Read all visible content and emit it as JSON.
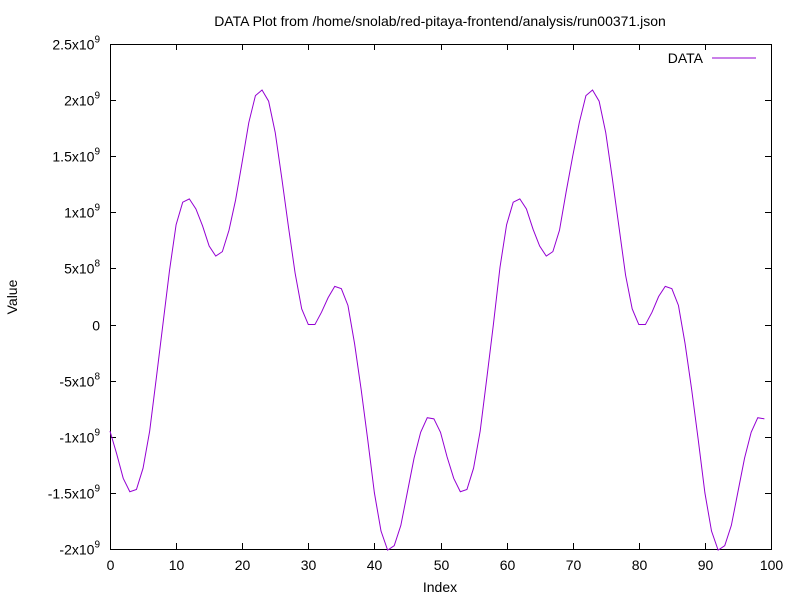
{
  "chart_data": {
    "type": "line",
    "title": "DATA Plot from /home/snolab/red-pitaya-frontend/analysis/run00371.json",
    "xlabel": "Index",
    "ylabel": "Value",
    "xlim": [
      0,
      100
    ],
    "ylim": [
      -2000000000,
      2500000000
    ],
    "x_ticks": [
      0,
      10,
      20,
      30,
      40,
      50,
      60,
      70,
      80,
      90,
      100
    ],
    "x_tick_labels": [
      "0",
      "10",
      "20",
      "30",
      "40",
      "50",
      "60",
      "70",
      "80",
      "90",
      "100"
    ],
    "y_ticks": [
      {
        "value": 2500000000,
        "mantissa": "2.5",
        "exp": "9"
      },
      {
        "value": 2000000000,
        "mantissa": "2",
        "exp": "9"
      },
      {
        "value": 1500000000,
        "mantissa": "1.5",
        "exp": "9"
      },
      {
        "value": 1000000000,
        "mantissa": "1",
        "exp": "9"
      },
      {
        "value": 500000000,
        "mantissa": "5",
        "exp": "8"
      },
      {
        "value": 0,
        "mantissa": "0",
        "exp": ""
      },
      {
        "value": -500000000,
        "mantissa": "-5",
        "exp": "8"
      },
      {
        "value": -1000000000,
        "mantissa": "-1",
        "exp": "9"
      },
      {
        "value": -1500000000,
        "mantissa": "-1.5",
        "exp": "9"
      },
      {
        "value": -2000000000,
        "mantissa": "-2",
        "exp": "9"
      }
    ],
    "x10_label": "x10",
    "grid": false,
    "legend_position": "top-right",
    "series": [
      {
        "name": "DATA",
        "color": "#9400d3",
        "x": [
          0,
          1,
          2,
          3,
          4,
          5,
          6,
          7,
          8,
          9,
          10,
          11,
          12,
          13,
          14,
          15,
          16,
          17,
          18,
          19,
          20,
          21,
          22,
          23,
          24,
          25,
          26,
          27,
          28,
          29,
          30,
          31,
          32,
          33,
          34,
          35,
          36,
          37,
          38,
          39,
          40,
          41,
          42,
          43,
          44,
          45,
          46,
          47,
          48,
          49,
          50,
          51,
          52,
          53,
          54,
          55,
          56,
          57,
          58,
          59,
          60,
          61,
          62,
          63,
          64,
          65,
          66,
          67,
          68,
          69,
          70,
          71,
          72,
          73,
          74,
          75,
          76,
          77,
          78,
          79,
          80,
          81,
          82,
          83,
          84,
          85,
          86,
          87,
          88,
          89,
          90,
          91,
          92,
          93,
          94,
          95,
          96,
          97,
          98,
          99
        ],
        "values": [
          -950000000.0,
          -1150000000.0,
          -1370000000.0,
          -1490000000.0,
          -1470000000.0,
          -1280000000.0,
          -950000000.0,
          -480000000.0,
          0.0,
          480000000.0,
          890000000.0,
          1090000000.0,
          1120000000.0,
          1030000000.0,
          880000000.0,
          700000000.0,
          610000000.0,
          650000000.0,
          840000000.0,
          1110000000.0,
          1450000000.0,
          1800000000.0,
          2040000000.0,
          2090000000.0,
          1990000000.0,
          1710000000.0,
          1300000000.0,
          870000000.0,
          460000000.0,
          140000000.0,
          0.0,
          0.0,
          110000000.0,
          240000000.0,
          340000000.0,
          320000000.0,
          170000000.0,
          -170000000.0,
          -580000000.0,
          -1030000000.0,
          -1500000000.0,
          -1840000000.0,
          -2010000000.0,
          -1970000000.0,
          -1790000000.0,
          -1490000000.0,
          -1190000000.0,
          -960000000.0,
          -830000000.0,
          -840000000.0,
          -960000000.0,
          -1180000000.0,
          -1370000000.0,
          -1490000000.0,
          -1470000000.0,
          -1280000000.0,
          -950000000.0,
          -480000000.0,
          0.0,
          510000000.0,
          890000000.0,
          1090000000.0,
          1120000000.0,
          1030000000.0,
          850000000.0,
          700000000.0,
          610000000.0,
          650000000.0,
          840000000.0,
          1180000000.0,
          1500000000.0,
          1800000000.0,
          2040000000.0,
          2090000000.0,
          1990000000.0,
          1710000000.0,
          1300000000.0,
          870000000.0,
          440000000.0,
          140000000.0,
          0.0,
          0.0,
          110000000.0,
          250000000.0,
          340000000.0,
          320000000.0,
          170000000.0,
          -170000000.0,
          -580000000.0,
          -1030000000.0,
          -1500000000.0,
          -1840000000.0,
          -2010000000.0,
          -1970000000.0,
          -1790000000.0,
          -1490000000.0,
          -1190000000.0,
          -960000000.0,
          -830000000.0,
          -840000000.0
        ]
      }
    ]
  }
}
